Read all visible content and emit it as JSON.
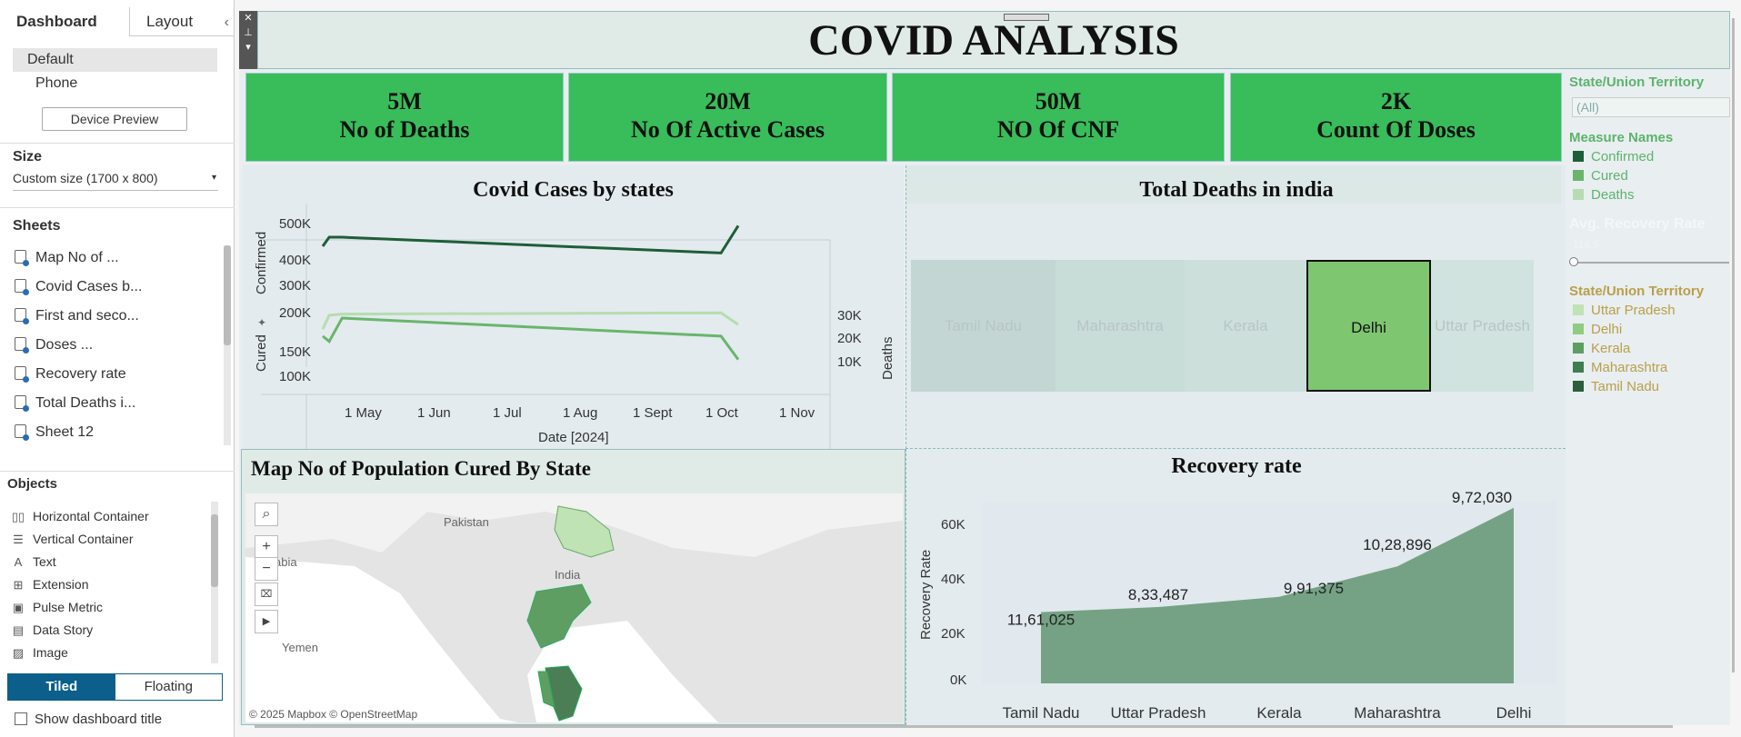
{
  "left_panel": {
    "tabs": [
      "Dashboard",
      "Layout"
    ],
    "layouts": [
      "Default",
      "Phone"
    ],
    "device_preview": "Device Preview",
    "size_title": "Size",
    "size_value": "Custom size (1700 x 800)",
    "sheets_title": "Sheets",
    "sheets": [
      "Map No of ...",
      "Covid Cases b...",
      "First and seco...",
      "Doses ...",
      "Recovery rate",
      "Total  Deaths i...",
      "Sheet 12"
    ],
    "objects_title": "Objects",
    "objects": [
      "Horizontal Container",
      "Vertical Container",
      "Text",
      "Extension",
      "Pulse Metric",
      "Data Story",
      "Image"
    ],
    "mode_tiled": "Tiled",
    "mode_floating": "Floating",
    "show_title": "Show dashboard title"
  },
  "dashboard": {
    "title": "COVID ANALYSIS",
    "kpis": [
      {
        "value": "5M",
        "label": "No of Deaths"
      },
      {
        "value": "20M",
        "label": "No Of Active Cases"
      },
      {
        "value": "50M",
        "label": "NO Of CNF"
      },
      {
        "value": "2K",
        "label": "Count Of Doses"
      }
    ],
    "line_panel": {
      "title": "Covid Cases by states",
      "confirmed_label": "Confirmed",
      "cured_label": "Cured",
      "deaths_label": "Deaths",
      "confirmed_ticks": [
        "500K",
        "400K",
        "300K"
      ],
      "cured_ticks": [
        "200K",
        "150K",
        "100K"
      ],
      "deaths_ticks": [
        "30K",
        "20K",
        "10K"
      ],
      "x_ticks": [
        "1 May",
        "1 Jun",
        "1 Jul",
        "1 Aug",
        "1 Sept",
        "1 Oct",
        "1 Nov"
      ],
      "xlabel": "Date [2024]"
    },
    "tree_panel": {
      "title": "Total  Deaths in india",
      "states": [
        "Tamil Nadu",
        "Maharashtra",
        "Kerala",
        "Delhi",
        "Uttar Pradesh"
      ]
    },
    "map_panel": {
      "title": "Map No of Population Cured By State",
      "labels": [
        "Pakistan",
        "India",
        "Yemen",
        "abia"
      ],
      "credit": "© 2025 Mapbox © OpenStreetMap"
    },
    "area_panel": {
      "title": "Recovery rate",
      "ylabel": "Recovery Rate",
      "y_ticks": [
        "60K",
        "40K",
        "20K",
        "0K"
      ]
    },
    "legend": {
      "filter_title": "State/Union Territory",
      "filter_value": "(All)",
      "measure_title": "Measure Names",
      "measures": [
        "Confirmed",
        "Cured",
        "Deaths"
      ],
      "slider_title": "Avg. Recovery Rate",
      "slider_value": "116.5",
      "state_title": "State/Union Territory",
      "states": [
        "Uttar Pradesh",
        "Delhi",
        "Kerala",
        "Maharashtra",
        "Tamil Nadu"
      ]
    }
  },
  "colors": {
    "kpi_green": "#39bc5a",
    "dark_green": "#1e5e37",
    "mid_green": "#6ab56c",
    "light_green": "#b6ddb0",
    "area_green": "#6f9e7e",
    "legend_text": "#5db36b",
    "state_legend_text": "#b8a04a"
  },
  "chart_data": [
    {
      "type": "line",
      "title": "Covid Cases by states",
      "x": [
        "2024-04-26",
        "2024-04-29",
        "2024-05-05",
        "2024-10-28",
        "2024-11-05"
      ],
      "xlabel": "Date [2024]",
      "series": [
        {
          "name": "Confirmed",
          "values": [
            415000,
            465000,
            465000,
            378000,
            528000
          ]
        },
        {
          "name": "Cured",
          "values": [
            165000,
            155000,
            200000,
            165000,
            120000
          ]
        },
        {
          "name": "Deaths",
          "values": [
            26000,
            32000,
            32500,
            33000,
            28000
          ]
        }
      ]
    },
    {
      "type": "area",
      "title": "Recovery rate",
      "categories": [
        "Tamil Nadu",
        "Uttar Pradesh",
        "Kerala",
        "Maharashtra",
        "Delhi"
      ],
      "values": [
        28000,
        30000,
        34000,
        46000,
        69000
      ],
      "data_labels": [
        "11,61,025",
        "8,33,487",
        "9,91,375",
        "10,28,896",
        "9,72,030"
      ],
      "ylabel": "Recovery Rate",
      "ylim": [
        0,
        70000
      ]
    }
  ]
}
